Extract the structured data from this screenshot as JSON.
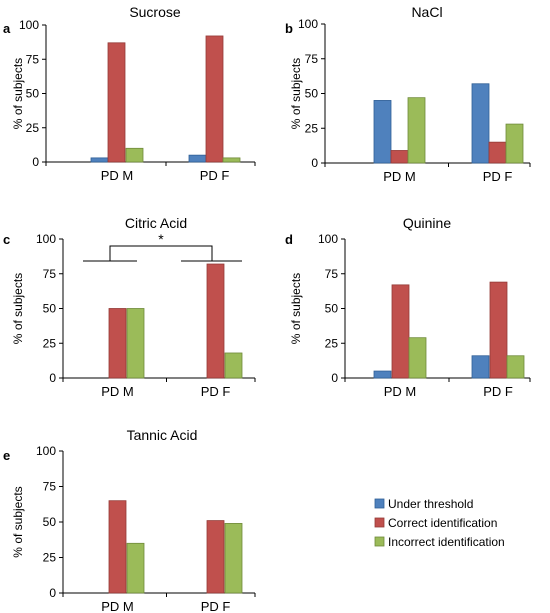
{
  "colors": {
    "under_threshold": "#4f81bd",
    "correct": "#c0504d",
    "incorrect": "#9bbb59"
  },
  "legend": [
    "Under threshold",
    "Correct identification",
    "Incorrect identification"
  ],
  "chart_data": [
    {
      "type": "bar",
      "panel": "a",
      "title": "Sucrose",
      "ylabel": "% of subjects",
      "ylim": [
        0,
        100
      ],
      "yticks": [
        0,
        25,
        50,
        75,
        100
      ],
      "categories": [
        "PD M",
        "PD F"
      ],
      "series": [
        {
          "name": "Under threshold",
          "values": [
            3,
            5
          ]
        },
        {
          "name": "Correct identification",
          "values": [
            87,
            92
          ]
        },
        {
          "name": "Incorrect identification",
          "values": [
            10,
            3
          ]
        }
      ]
    },
    {
      "type": "bar",
      "panel": "b",
      "title": "NaCl",
      "ylabel": "% of subjects",
      "ylim": [
        0,
        100
      ],
      "yticks": [
        0,
        25,
        50,
        75,
        100
      ],
      "categories": [
        "PD M",
        "PD F"
      ],
      "series": [
        {
          "name": "Under threshold",
          "values": [
            45,
            57
          ]
        },
        {
          "name": "Correct identification",
          "values": [
            9,
            15
          ]
        },
        {
          "name": "Incorrect identification",
          "values": [
            47,
            28
          ]
        }
      ]
    },
    {
      "type": "bar",
      "panel": "c",
      "title": "Citric Acid",
      "ylabel": "% of subjects",
      "ylim": [
        0,
        100
      ],
      "yticks": [
        0,
        25,
        50,
        75,
        100
      ],
      "categories": [
        "PD M",
        "PD F"
      ],
      "series": [
        {
          "name": "Under threshold",
          "values": [
            0,
            0
          ]
        },
        {
          "name": "Correct identification",
          "values": [
            50,
            82
          ]
        },
        {
          "name": "Incorrect identification",
          "values": [
            50,
            18
          ]
        }
      ],
      "annotation": "*"
    },
    {
      "type": "bar",
      "panel": "d",
      "title": "Quinine",
      "ylabel": "% of subjects",
      "ylim": [
        0,
        100
      ],
      "yticks": [
        0,
        25,
        50,
        75,
        100
      ],
      "categories": [
        "PD M",
        "PD F"
      ],
      "series": [
        {
          "name": "Under threshold",
          "values": [
            5,
            16
          ]
        },
        {
          "name": "Correct identification",
          "values": [
            67,
            69
          ]
        },
        {
          "name": "Incorrect identification",
          "values": [
            29,
            16
          ]
        }
      ]
    },
    {
      "type": "bar",
      "panel": "e",
      "title": "Tannic Acid",
      "ylabel": "% of subjects",
      "ylim": [
        0,
        100
      ],
      "yticks": [
        0,
        25,
        50,
        75,
        100
      ],
      "categories": [
        "PD M",
        "PD F"
      ],
      "series": [
        {
          "name": "Under threshold",
          "values": [
            0,
            0
          ]
        },
        {
          "name": "Correct identification",
          "values": [
            65,
            51
          ]
        },
        {
          "name": "Incorrect identification",
          "values": [
            35,
            49
          ]
        }
      ]
    }
  ]
}
